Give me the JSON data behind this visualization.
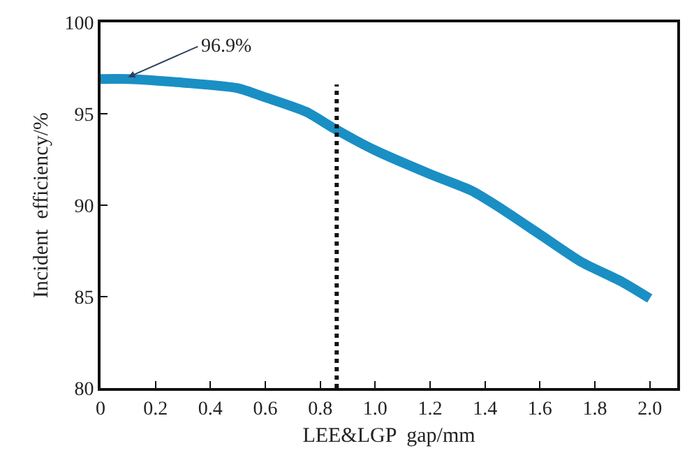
{
  "chart_data": {
    "type": "line",
    "xlabel": "LEE&LGP  gap/mm",
    "ylabel": "Incident  efficiency/%",
    "x": [
      0,
      0.1,
      0.3,
      0.5,
      0.6,
      0.75,
      0.85,
      1.0,
      1.2,
      1.35,
      1.45,
      1.6,
      1.75,
      1.9,
      2.0
    ],
    "series": [
      {
        "color": "#1a8fc4",
        "values": [
          96.9,
          96.9,
          96.7,
          96.4,
          95.9,
          95.1,
          94.2,
          93.0,
          91.7,
          90.8,
          89.9,
          88.4,
          86.9,
          85.8,
          84.9
        ]
      }
    ],
    "xlim": [
      0,
      2.1
    ],
    "xticks": [
      {
        "value": 0,
        "label": "0"
      },
      {
        "value": 0.2,
        "label": "0.2"
      },
      {
        "value": 0.4,
        "label": "0.4"
      },
      {
        "value": 0.6,
        "label": "0.6"
      },
      {
        "value": 0.8,
        "label": "0.8"
      },
      {
        "value": 1.0,
        "label": "1.0"
      },
      {
        "value": 1.2,
        "label": "1.2"
      },
      {
        "value": 1.4,
        "label": "1.4"
      },
      {
        "value": 1.6,
        "label": "1.6"
      },
      {
        "value": 1.8,
        "label": "1.8"
      },
      {
        "value": 2.0,
        "label": "2.0"
      }
    ],
    "ylim": [
      80,
      100
    ],
    "yticks": [
      80,
      85,
      90,
      95,
      100
    ],
    "ref_lines": [
      {
        "axis": "x",
        "value": 0.86,
        "color": "#111111",
        "line_style": "dotted"
      }
    ],
    "annotations": [
      {
        "text": "96.9%",
        "x": 0.1,
        "y": 97
      }
    ],
    "legend": false,
    "marker": "none",
    "line_style": "solid"
  }
}
